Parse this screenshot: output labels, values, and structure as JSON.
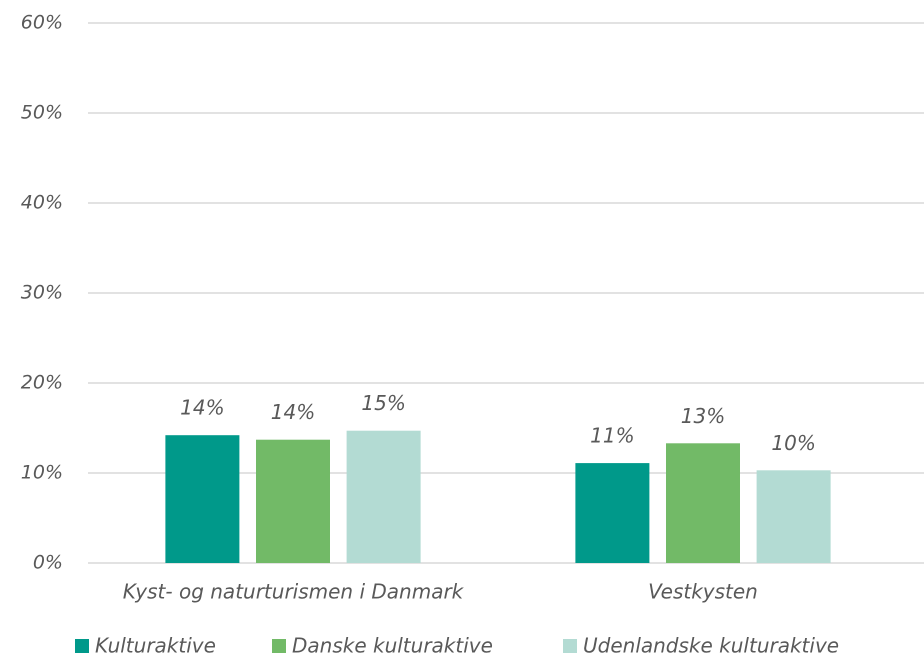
{
  "chart_data": {
    "type": "bar",
    "categories": [
      "Kyst- og naturturismen i Danmark",
      "Vestkysten"
    ],
    "series": [
      {
        "name": "Kulturaktive",
        "color": "#00998a",
        "values": [
          14.2,
          11.1
        ],
        "value_labels": [
          "14%",
          "11%"
        ]
      },
      {
        "name": "Danske kulturaktive",
        "color": "#72ba67",
        "values": [
          13.7,
          13.3
        ],
        "value_labels": [
          "14%",
          "13%"
        ]
      },
      {
        "name": "Udenlandske kulturaktive",
        "color": "#b3dbd3",
        "values": [
          14.7,
          10.3
        ],
        "value_labels": [
          "15%",
          "10%"
        ]
      }
    ],
    "ylim": [
      0,
      60
    ],
    "yticks": [
      {
        "value": 0,
        "label": "0%"
      },
      {
        "value": 10,
        "label": "10%"
      },
      {
        "value": 20,
        "label": "20%"
      },
      {
        "value": 30,
        "label": "30%"
      },
      {
        "value": 40,
        "label": "40%"
      },
      {
        "value": 50,
        "label": "50%"
      },
      {
        "value": 60,
        "label": "60%"
      }
    ],
    "grid": true,
    "legend": "bottom"
  }
}
